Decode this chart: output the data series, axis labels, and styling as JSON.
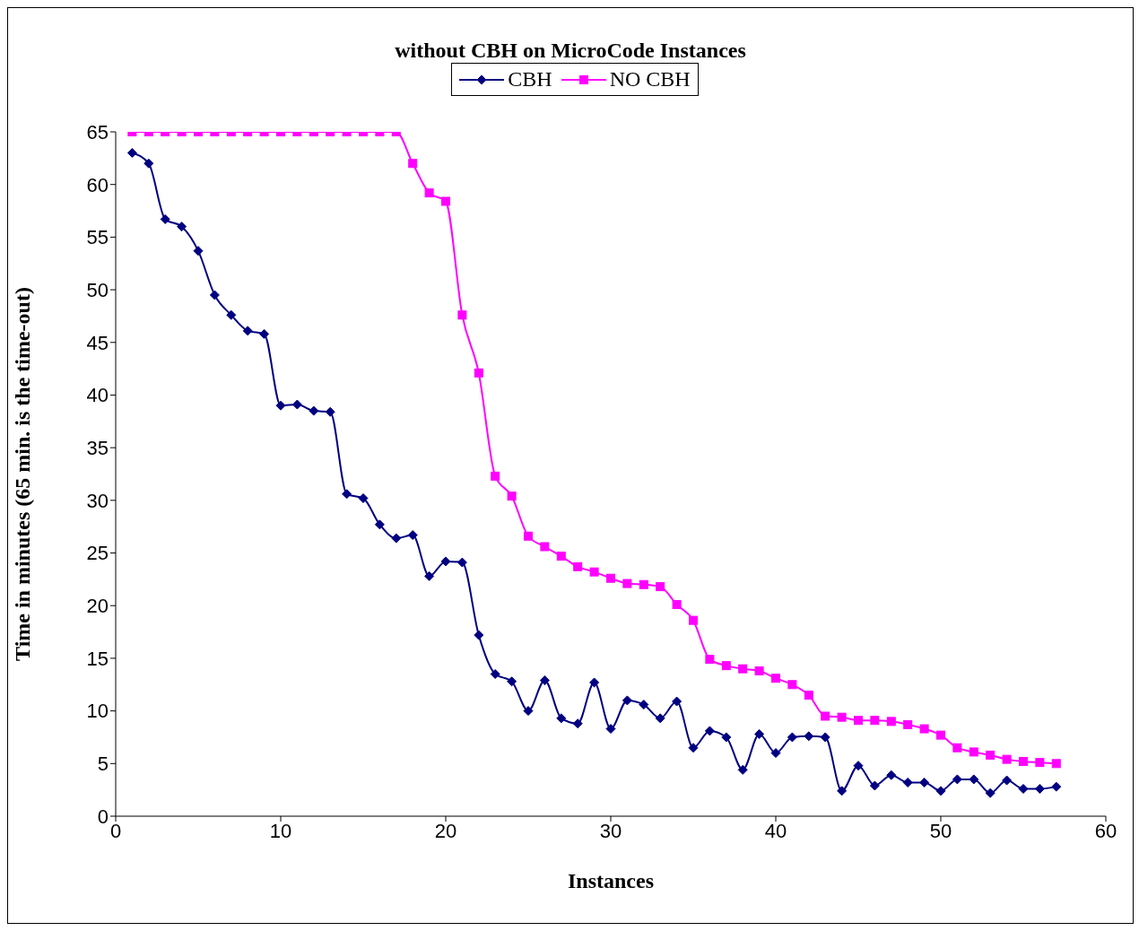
{
  "chart_data": {
    "type": "line",
    "title": "without CBH on MicroCode Instances",
    "xlabel": "Instances",
    "ylabel": "Time in minutes (65 min. is the time-out)",
    "xlim": [
      0,
      60
    ],
    "xticks": [
      0,
      10,
      20,
      30,
      40,
      50,
      60
    ],
    "ylim": [
      0,
      65
    ],
    "yticks": [
      0,
      5,
      10,
      15,
      20,
      25,
      30,
      35,
      40,
      45,
      50,
      55,
      60,
      65
    ],
    "x": [
      1,
      2,
      3,
      4,
      5,
      6,
      7,
      8,
      9,
      10,
      11,
      12,
      13,
      14,
      15,
      16,
      17,
      18,
      19,
      20,
      21,
      22,
      23,
      24,
      25,
      26,
      27,
      28,
      29,
      30,
      31,
      32,
      33,
      34,
      35,
      36,
      37,
      38,
      39,
      40,
      41,
      42,
      43,
      44,
      45,
      46,
      47,
      48,
      49,
      50,
      51,
      52,
      53,
      54,
      55,
      56,
      57
    ],
    "legend": "top",
    "grid": false,
    "series": [
      {
        "name": "CBH",
        "color": "#000080",
        "marker": "diamond",
        "values": [
          63.0,
          62.0,
          56.7,
          56.0,
          53.7,
          49.5,
          47.6,
          46.1,
          45.8,
          39.0,
          39.1,
          38.5,
          38.4,
          30.6,
          30.2,
          27.7,
          26.4,
          26.7,
          22.8,
          24.2,
          24.1,
          17.2,
          13.5,
          12.8,
          10.0,
          12.9,
          9.3,
          8.8,
          12.7,
          8.3,
          11.0,
          10.6,
          9.3,
          10.9,
          6.5,
          8.1,
          7.5,
          4.4,
          7.8,
          6.0,
          7.5,
          7.6,
          7.5,
          2.4,
          4.8,
          2.9,
          3.9,
          3.2,
          3.2,
          2.4,
          3.5,
          3.5,
          2.2,
          3.4,
          2.6,
          2.6,
          2.8
        ]
      },
      {
        "name": "NO CBH",
        "color": "#ff00ff",
        "marker": "square",
        "values": [
          65,
          65,
          65,
          65,
          65,
          65,
          65,
          65,
          65,
          65,
          65,
          65,
          65,
          65,
          65,
          65,
          65,
          62.0,
          59.2,
          58.4,
          47.6,
          42.1,
          32.3,
          30.4,
          26.6,
          25.6,
          24.7,
          23.7,
          23.2,
          22.6,
          22.1,
          22.0,
          21.8,
          20.1,
          18.6,
          14.9,
          14.3,
          14.0,
          13.8,
          13.1,
          12.5,
          11.5,
          9.5,
          9.4,
          9.1,
          9.1,
          9.0,
          8.7,
          8.3,
          7.7,
          6.5,
          6.1,
          5.8,
          5.4,
          5.2,
          5.1,
          5.0
        ]
      }
    ]
  }
}
